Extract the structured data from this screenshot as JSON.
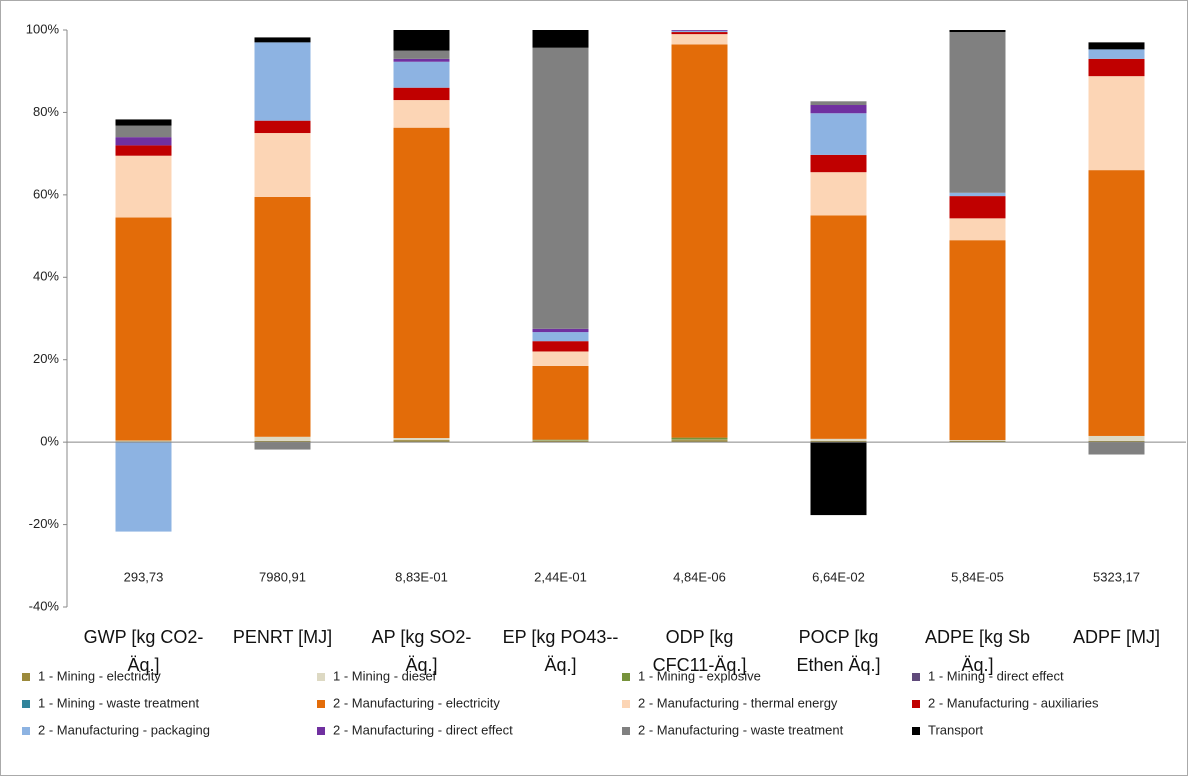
{
  "chart_data": {
    "type": "stacked_bar",
    "categories": [
      "GWP [kg CO2-\nÄq.]",
      "PENRT [MJ]",
      "AP [kg SO2-\nÄq.]",
      "EP [kg PO43--\nÄq.]",
      "ODP [kg\nCFC11-Äq.]",
      "POCP [kg\nEthen Äq.]",
      "ADPE [kg Sb\nÄq.]",
      "ADPF [MJ]"
    ],
    "annotations": [
      "293,73",
      "7980,91",
      "8,83E-01",
      "2,44E-01",
      "4,84E-06",
      "6,64E-02",
      "5,84E-05",
      "5323,17"
    ],
    "series": [
      {
        "name": "1 - Mining - electricity",
        "color": "#9c8a3c",
        "values": [
          0.2,
          0.3,
          0.5,
          0.3,
          0.5,
          0.3,
          0.3,
          0.3
        ]
      },
      {
        "name": "1 - Mining - diesel",
        "color": "#ddd9c3",
        "values": [
          0.2,
          1.0,
          0.5,
          0.1,
          0.1,
          0.5,
          0.2,
          1.2
        ]
      },
      {
        "name": "1 - Mining - explosive",
        "color": "#77933c",
        "values": [
          0,
          0,
          0,
          0.2,
          0.5,
          0,
          0,
          0
        ]
      },
      {
        "name": "1 - Mining - direct effect",
        "color": "#604a7b",
        "values": [
          0,
          0,
          0,
          0,
          0,
          0,
          0,
          0
        ]
      },
      {
        "name": "1 - Mining - waste treatment",
        "color": "#31849b",
        "values": [
          0,
          0,
          0,
          0,
          0,
          0,
          0,
          0
        ]
      },
      {
        "name": "2 - Manufacturing - electricity",
        "color": "#e36c09",
        "values": [
          54.1,
          58.2,
          75.3,
          17.9,
          95.4,
          54.2,
          48.5,
          64.5
        ]
      },
      {
        "name": "2 - Manufacturing - thermal energy",
        "color": "#fcd5b5",
        "values": [
          15,
          15.5,
          6.7,
          3.5,
          2.5,
          10.5,
          5.3,
          22.8
        ]
      },
      {
        "name": "2 - Manufacturing - auxiliaries",
        "color": "#c00000",
        "values": [
          2.5,
          3,
          3,
          2.5,
          0.5,
          4.2,
          5.4,
          4.2
        ]
      },
      {
        "name": "2 - Manufacturing - packaging",
        "color": "#8db3e2",
        "values": [
          -21.7,
          19,
          6.3,
          2.2,
          0.3,
          10.1,
          0.8,
          2.3
        ]
      },
      {
        "name": "2 - Manufacturing - direct effect",
        "color": "#7030a0",
        "values": [
          2,
          0,
          0.7,
          0.8,
          0.2,
          2,
          0,
          0
        ]
      },
      {
        "name": "2 - Manufacturing - waste treatment",
        "color": "#808080",
        "values": [
          2.8,
          -1.8,
          2,
          68.2,
          0,
          0.9,
          39,
          -3
        ]
      },
      {
        "name": "Transport",
        "color": "#000000",
        "values": [
          1.5,
          1.2,
          5,
          4.3,
          0,
          -17.7,
          0.5,
          1.7
        ]
      }
    ],
    "ylim": [
      -40,
      100
    ],
    "yticks": [
      {
        "value": -40,
        "label": "-40%"
      },
      {
        "value": -20,
        "label": "-20%"
      },
      {
        "value": 0,
        "label": "0%"
      },
      {
        "value": 20,
        "label": "20%"
      },
      {
        "value": 40,
        "label": "40%"
      },
      {
        "value": 60,
        "label": "60%"
      },
      {
        "value": 80,
        "label": "80%"
      },
      {
        "value": 100,
        "label": "100%"
      }
    ],
    "legend": "bottom"
  }
}
